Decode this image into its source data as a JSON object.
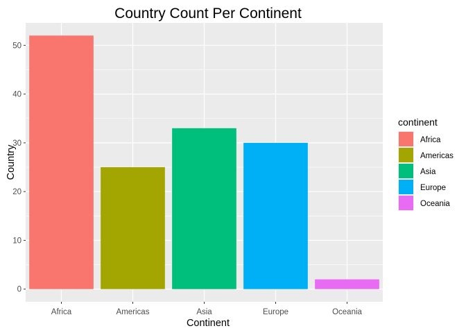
{
  "chart_data": {
    "type": "bar",
    "title": "Country Count Per Continent",
    "xlabel": "Continent",
    "ylabel": "Country",
    "categories": [
      "Africa",
      "Americas",
      "Asia",
      "Europe",
      "Oceania"
    ],
    "values": [
      52,
      25,
      33,
      30,
      2
    ],
    "colors": [
      "#F8766D",
      "#A3A500",
      "#00BF7D",
      "#00B0F6",
      "#E76BF3"
    ],
    "ylim": [
      -2.6,
      54.6
    ],
    "yticks": [
      0,
      10,
      20,
      30,
      40,
      50
    ],
    "grid": true,
    "panel_background": "#EBEBEB",
    "legend": {
      "title": "continent",
      "position": "right",
      "labels": [
        "Africa",
        "Americas",
        "Asia",
        "Europe",
        "Oceania"
      ]
    }
  }
}
